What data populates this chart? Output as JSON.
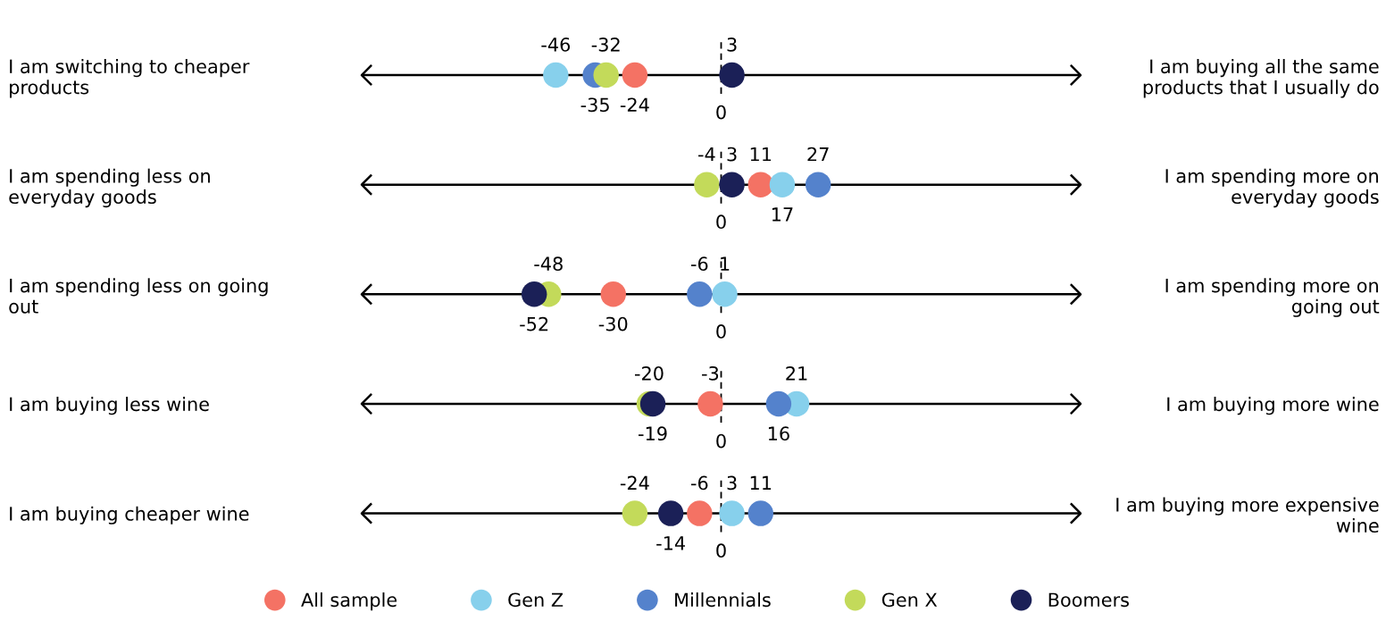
{
  "chart_data": {
    "type": "scatter",
    "orientation": "horizontal",
    "categories": [
      "I am switching to cheaper products",
      "I am spending less on everyday goods",
      "I am spending less on going out",
      "I am buying less wine",
      "I am buying cheaper wine"
    ],
    "y2_categories": [
      "I am buying all the same products that I usually do",
      "I am spending more on everyday goods",
      "I am spending more on going out",
      "I am buying more wine",
      "I am buying more expensive wine"
    ],
    "series": [
      {
        "name": "All sample",
        "color": "#f47264",
        "values": [
          -24,
          11,
          -30,
          -3,
          -6
        ]
      },
      {
        "name": "Gen Z",
        "color": "#87d0ec",
        "values": [
          -46,
          17,
          1,
          21,
          3
        ]
      },
      {
        "name": "Millennials",
        "color": "#5482cc",
        "values": [
          -35,
          27,
          -6,
          16,
          11
        ]
      },
      {
        "name": "Gen X",
        "color": "#c3da5a",
        "values": [
          -32,
          -4,
          -48,
          -20,
          -24
        ]
      },
      {
        "name": "Boomers",
        "color": "#1b2057",
        "values": [
          3,
          3,
          -52,
          -19,
          -14
        ]
      }
    ],
    "grid": "y",
    "tick_labels": "y",
    "data_labels": true,
    "marker": "circle",
    "legend": "bottom",
    "ref_lines": [
      {
        "axis": "x",
        "value": 0,
        "label": "0",
        "line_style": "dashed",
        "color": "#000000"
      }
    ]
  }
}
